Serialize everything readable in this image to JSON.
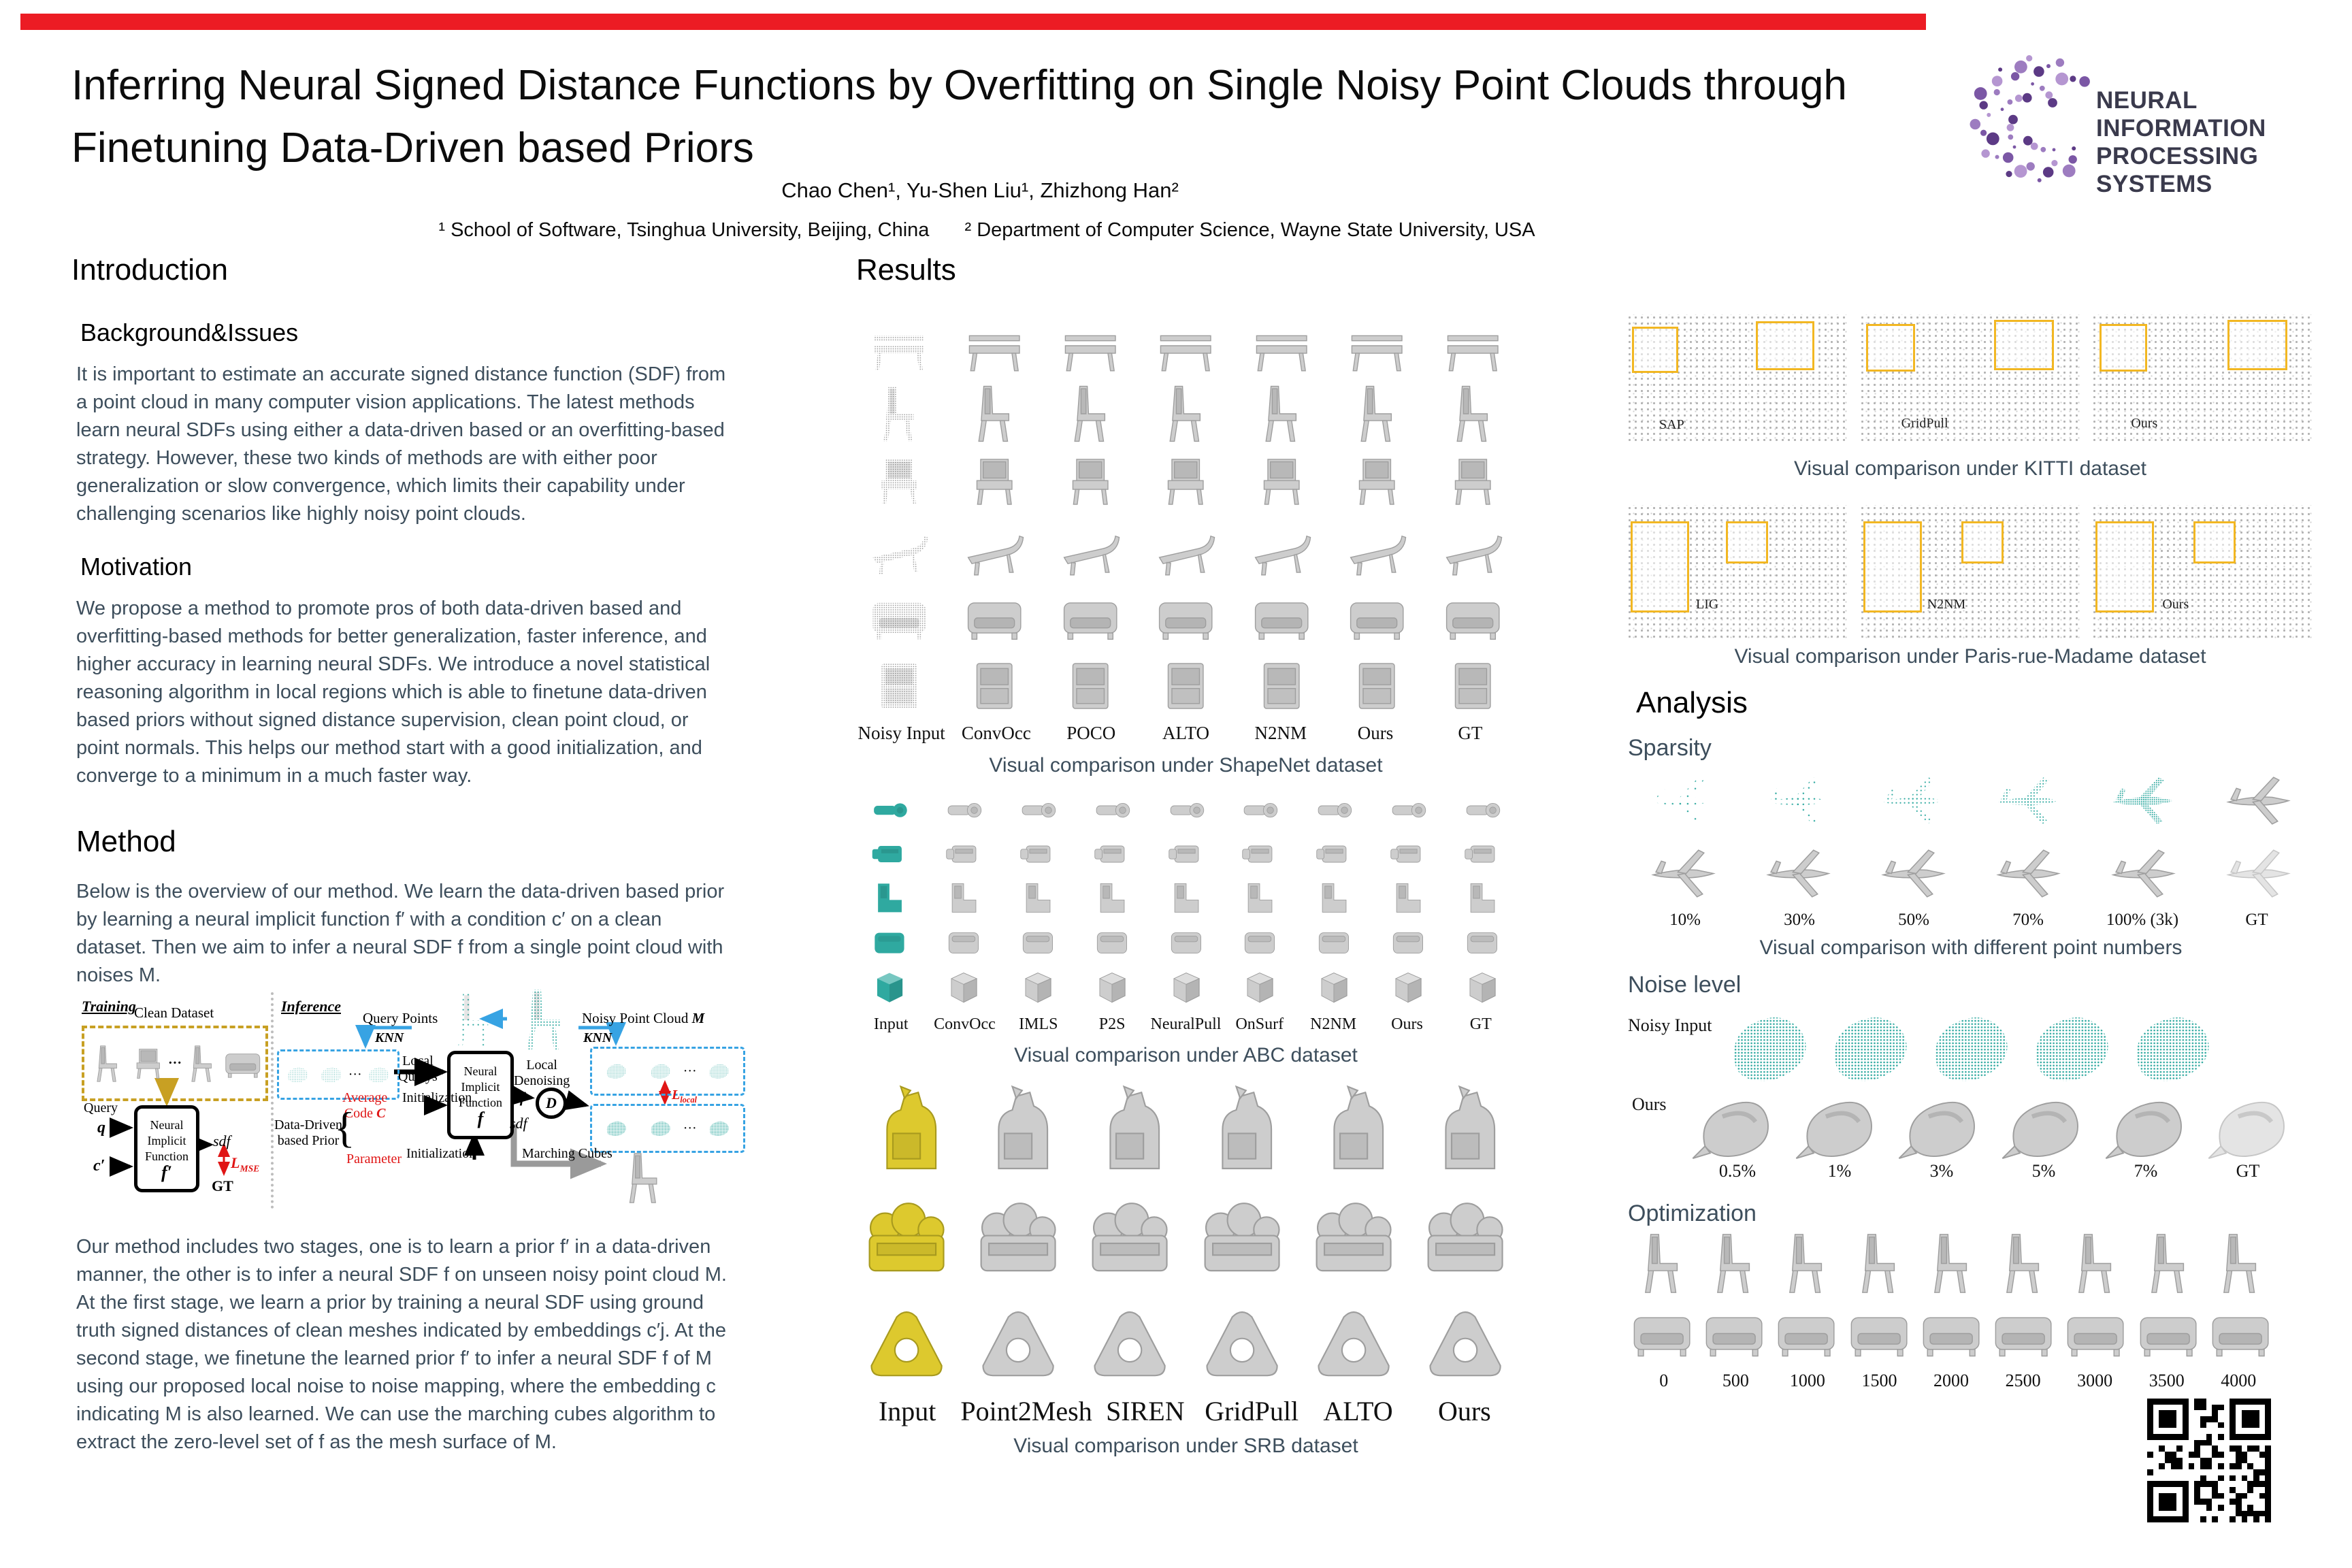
{
  "poster": {
    "title": "Inferring Neural Signed Distance Functions by Overfitting on Single Noisy Point Clouds through Finetuning Data-Driven based Priors",
    "authors": "Chao Chen¹, Yu-Shen Liu¹, Zhizhong Han²",
    "affiliation1": "¹ School of Software, Tsinghua University, Beijing, China",
    "affiliation2": "² Department of Computer Science, Wayne State University, USA",
    "logo_line1": "NEURAL INFORMATION",
    "logo_line2": "PROCESSING SYSTEMS"
  },
  "sections": {
    "introduction": "Introduction",
    "results": "Results",
    "analysis": "Analysis",
    "background": "Background&Issues",
    "motivation": "Motivation",
    "method": "Method",
    "sparsity": "Sparsity",
    "noise_level": "Noise level",
    "optimization": "Optimization"
  },
  "introduction": {
    "background_text": "It is important to estimate an accurate signed distance function (SDF) from a point cloud in many computer vision applications. The latest methods learn neural SDFs using either a data-driven based or an overfitting-based strategy. However, these two kinds of methods are with either poor generalization or slow convergence, which limits their capability under challenging scenarios like highly noisy point clouds.",
    "motivation_text": "We propose a method to promote pros of both data-driven based and overfitting-based methods for better generalization, faster inference, and higher accuracy in learning neural SDFs. We introduce a novel statistical reasoning algorithm in local regions which is able to finetune data-driven based priors without signed distance supervision, clean point cloud, or point normals. This helps our method start with a good initialization, and converge to a minimum in a much faster way.",
    "method_text1": "Below is the overview of our method. We learn the data-driven based prior by learning a neural implicit function f′ with a condition c′ on a clean dataset. Then we aim to infer a neural SDF f from a single point cloud with noises M.",
    "method_text2": "Our method includes two stages, one is to learn a prior f′ in a data-driven manner, the other is to infer a neural SDF f on unseen noisy point cloud M. At the first stage, we learn a prior by training a neural SDF using ground truth signed distances of clean meshes indicated by embeddings c′j. At the second stage, we finetune the learned prior f′ to infer a neural SDF f of M using our proposed local noise to noise mapping, where the embedding c indicating M is also learned. We can use the marching cubes algorithm to extract the zero-level set of f as the mesh surface of M."
  },
  "diagram": {
    "training": "Training",
    "clean_dataset": "Clean Dataset",
    "query": "Query",
    "q": "q",
    "c_prime": "c′",
    "neural": "Neural",
    "implicit": "Implicit",
    "function": "Function",
    "f_prime": "f′",
    "f": "f",
    "sdf": "sdf",
    "l": "L",
    "mse": "MSE",
    "local_sub": "local",
    "gt": "GT",
    "inference": "Inference",
    "query_points": "Query Points",
    "noisy_pc": "Noisy Point Cloud ",
    "m": "M",
    "knn": "KNN",
    "local_querys1": "Local",
    "local_querys2": "Querys",
    "local_denoising1": "Local",
    "local_denoising2": "Denoising",
    "grad_f": "∇f",
    "d": "D",
    "avg_code1": "Average",
    "avg_code2": "Code ",
    "code_c": "C",
    "init": "Initialization",
    "ddp1": "Data-Driven",
    "ddp2": "based Prior",
    "brace": "{",
    "parameter": "Parameter",
    "marching": "Marching Cubes",
    "dots": "···"
  },
  "results": {
    "shapenet": {
      "labels": [
        "Noisy Input",
        "ConvOcc",
        "POCO",
        "ALTO",
        "N2NM",
        "Ours",
        "GT"
      ],
      "caption": "Visual comparison under ShapeNet dataset"
    },
    "abc": {
      "labels": [
        "Input",
        "ConvOcc",
        "IMLS",
        "P2S",
        "NeuralPull",
        "OnSurf",
        "N2NM",
        "Ours",
        "GT"
      ],
      "caption": "Visual comparison under ABC dataset"
    },
    "srb": {
      "labels": [
        "Input",
        "Point2Mesh",
        "SIREN",
        "GridPull",
        "ALTO",
        "Ours"
      ],
      "caption": "Visual comparison under SRB dataset"
    }
  },
  "right": {
    "kitti": {
      "labels": [
        "SAP",
        "GridPull",
        "Ours"
      ],
      "caption": "Visual comparison under KITTI dataset"
    },
    "paris": {
      "labels": [
        "LIG",
        "N2NM",
        "Ours"
      ],
      "caption": "Visual comparison under Paris-rue-Madame dataset"
    },
    "sparsity": {
      "labels": [
        "10%",
        "30%",
        "50%",
        "70%",
        "100% (3k)",
        "GT"
      ],
      "caption": "Visual comparison with different point numbers"
    },
    "noise": {
      "row1_label": "Noisy Input",
      "row2_label": "Ours",
      "labels": [
        "0.5%",
        "1%",
        "3%",
        "5%",
        "7%",
        "GT"
      ]
    },
    "optimization": {
      "labels": [
        "0",
        "500",
        "1000",
        "1500",
        "2000",
        "2500",
        "3000",
        "3500",
        "4000"
      ]
    }
  },
  "colors": {
    "accent_red": "#ec1c24",
    "teal": "#2fa9a0",
    "srb_yellow": "#ddc92e",
    "highlight_yellow": "#f2b722",
    "knn_blue": "#37a3e3",
    "logo_purple": "#7b57a5",
    "slate_text": "#3d4e5c"
  },
  "figures": {
    "grids": [
      {
        "target": "shapenet-grid",
        "rows": 6,
        "cols": 7,
        "gap": 8,
        "shapes": [
          "bench",
          "chair",
          "seat",
          "lounge",
          "sofa",
          "cabinet"
        ],
        "firstColStyle": "noisy",
        "defaultStyle": "mesh"
      },
      {
        "target": "abc-grid",
        "rows": 5,
        "cols": 9,
        "gap": 5,
        "shapes": [
          "tool",
          "part",
          "bracket",
          "blockx",
          "cube"
        ],
        "firstColStyle": "teal",
        "defaultStyle": "mesh"
      },
      {
        "target": "srb-grid",
        "rows": 3,
        "cols": 6,
        "gap": 10,
        "shapes": [
          "dog",
          "group",
          "anchor"
        ],
        "firstColStyle": "yellow",
        "defaultStyle": "mesh"
      },
      {
        "target": "sparsity-grid",
        "rows": 2,
        "cols": 6,
        "gap": 6,
        "shapes": [
          "plane",
          "plane"
        ],
        "cells": [
          [
            "t1",
            "t2",
            "t3",
            "t4",
            "t5",
            "mesh"
          ],
          [
            "mesh",
            "mesh",
            "mesh",
            "mesh",
            "mesh",
            "meshlight"
          ]
        ]
      },
      {
        "target": "opt-grid",
        "rows": 2,
        "cols": 9,
        "gap": 6,
        "shapes": [
          "chair",
          "sofa"
        ],
        "defaultStyle": "mesh"
      }
    ]
  }
}
